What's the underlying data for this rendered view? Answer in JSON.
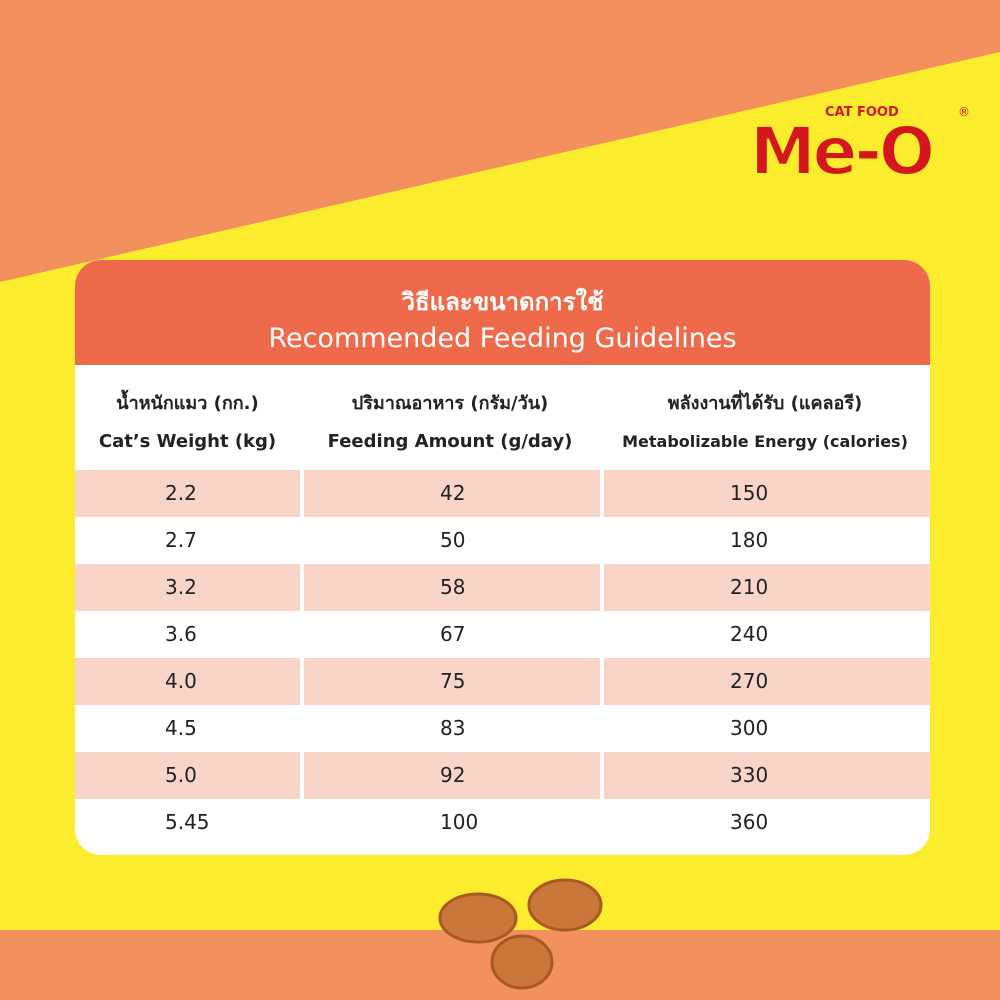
{
  "logo": {
    "tagline": "CAT FOOD",
    "brand": "Me-O",
    "mark": "®"
  },
  "title": {
    "thai": "วิธีและขนาดการใช้",
    "english": "Recommended Feeding Guidelines"
  },
  "table": {
    "headers": [
      {
        "thai": "น้ำหนักแมว (กก.)",
        "english": "Cat’s Weight (kg)"
      },
      {
        "thai": "ปริมาณอาหาร (กรัม/วัน)",
        "english": "Feeding Amount (g/day)"
      },
      {
        "thai": "พลังงานที่ได้รับ (แคลอรี)",
        "english": "Metabolizable Energy (calories)"
      }
    ],
    "rows": [
      [
        "2.2",
        "42",
        "150"
      ],
      [
        "2.7",
        "50",
        "180"
      ],
      [
        "3.2",
        "58",
        "210"
      ],
      [
        "3.6",
        "67",
        "240"
      ],
      [
        "4.0",
        "75",
        "270"
      ],
      [
        "4.5",
        "83",
        "300"
      ],
      [
        "5.0",
        "92",
        "330"
      ],
      [
        "5.45",
        "100",
        "360"
      ]
    ]
  }
}
